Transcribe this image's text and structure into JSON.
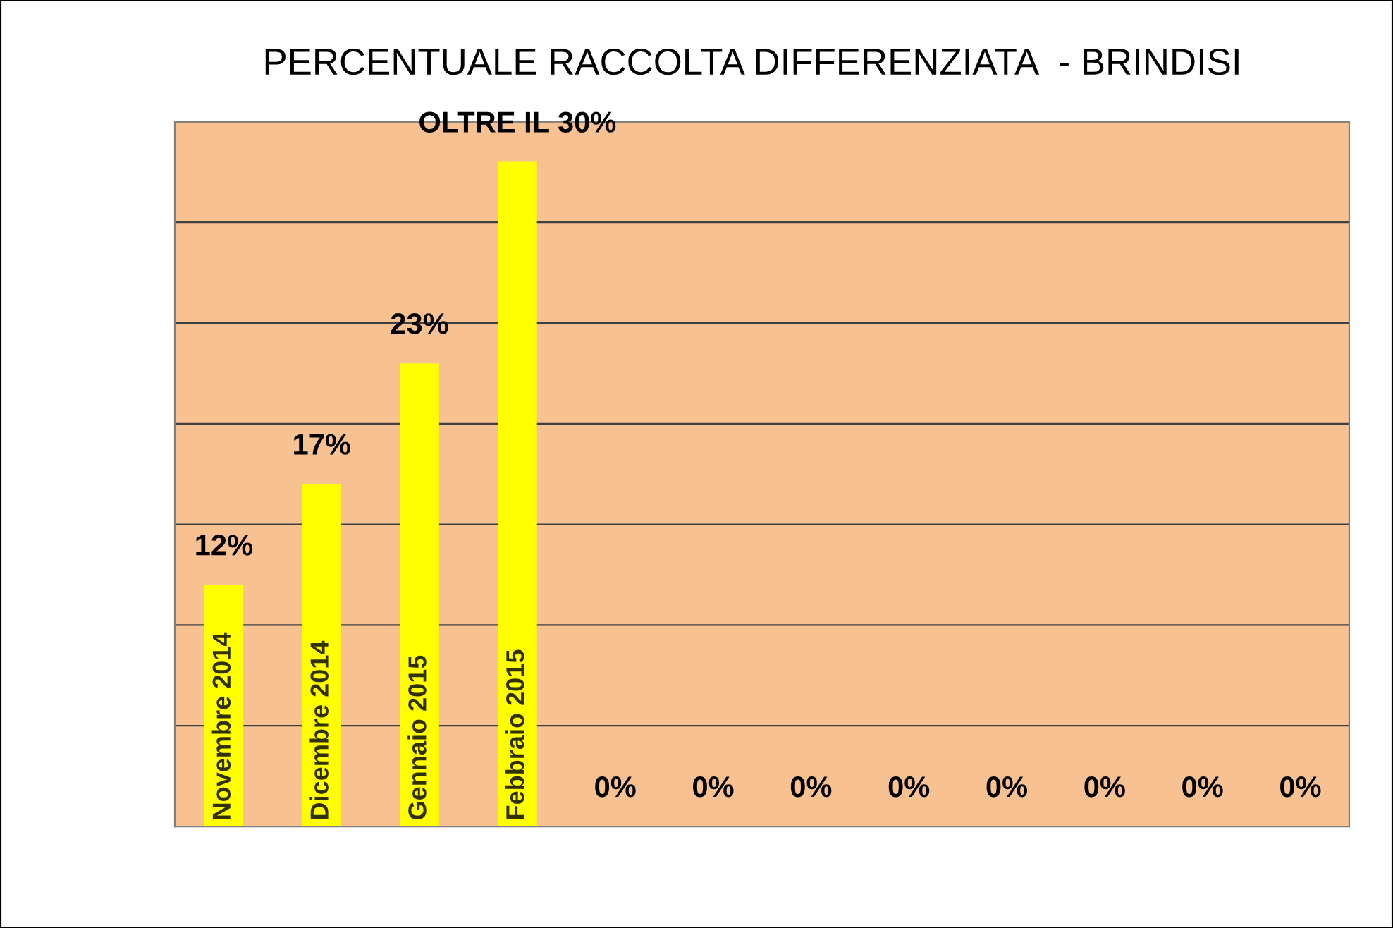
{
  "chart_data": {
    "type": "bar",
    "title": "PERCENTUALE RACCOLTA DIFFERENZIATA  - BRINDISI",
    "categories": [
      "Novembre 2014",
      "Dicembre 2014",
      "Gennaio 2015",
      "Febbraio 2015",
      null,
      null,
      null,
      null,
      null,
      null,
      null,
      null
    ],
    "values": [
      12,
      17,
      23,
      33,
      0,
      0,
      0,
      0,
      0,
      0,
      0,
      0
    ],
    "value_labels": [
      "12%",
      "17%",
      "23%",
      "OLTRE IL 30%",
      "0%",
      "0%",
      "0%",
      "0%",
      "0%",
      "0%",
      "0%",
      "0%"
    ],
    "color": "#ffff00",
    "ylim": [
      0,
      35
    ],
    "yticks": [
      {
        "value": 0,
        "label": null
      },
      {
        "value": 5,
        "label": null
      },
      {
        "value": 10,
        "label": null
      },
      {
        "value": 15,
        "label": null
      },
      {
        "value": 20,
        "label": null
      },
      {
        "value": 25,
        "label": null
      },
      {
        "value": 30,
        "label": null
      },
      {
        "value": 35,
        "label": null
      }
    ],
    "grid": "y",
    "legend": false
  }
}
